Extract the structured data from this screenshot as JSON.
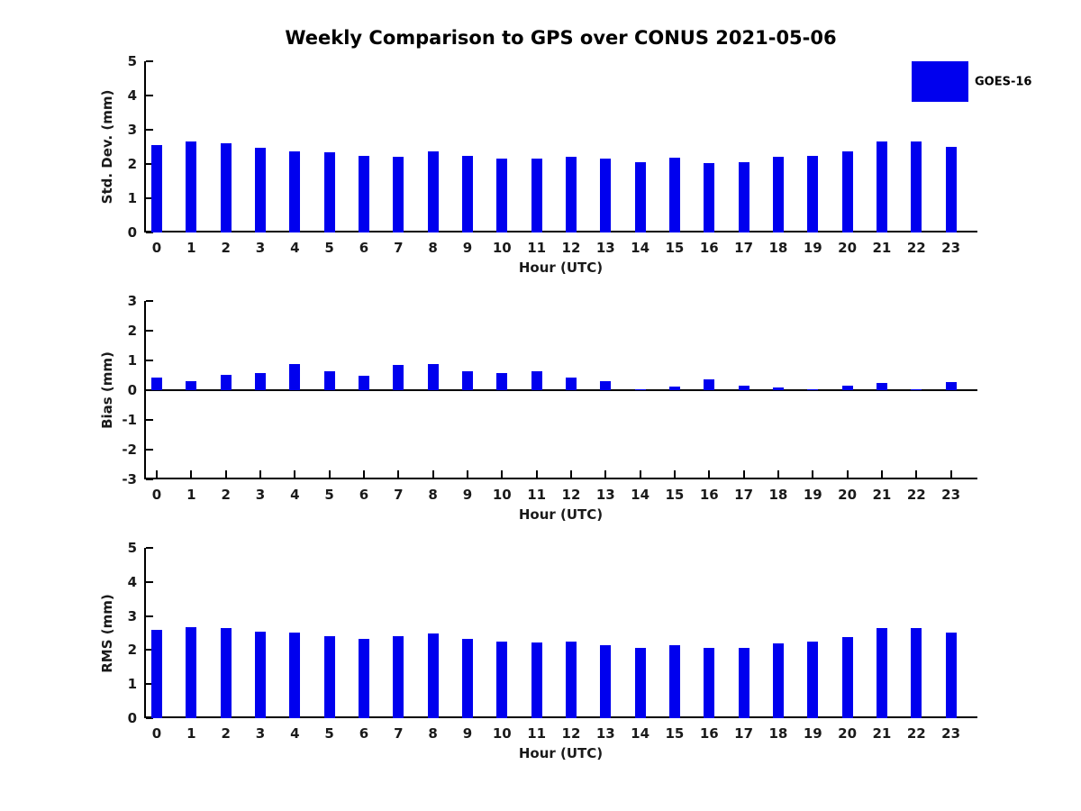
{
  "title": "Weekly Comparison to GPS over CONUS 2021-05-06",
  "legend": {
    "label": "GOES-16",
    "swatch_color": "#0000EE"
  },
  "colors": {
    "bar": "#0000EE",
    "axis": "#000000",
    "text": "#1a1a1a",
    "background": "#ffffff"
  },
  "chart_data": [
    {
      "type": "bar",
      "title": "Weekly Comparison to GPS over CONUS 2021-05-06",
      "xlabel": "Hour (UTC)",
      "ylabel": "Std. Dev. (mm)",
      "ylim": [
        0,
        5
      ],
      "yticks": [
        0,
        1,
        2,
        3,
        4,
        5
      ],
      "grid": false,
      "legend_position": "upper right outside axes",
      "categories": [
        "0",
        "1",
        "2",
        "3",
        "4",
        "5",
        "6",
        "7",
        "8",
        "9",
        "10",
        "11",
        "12",
        "13",
        "14",
        "15",
        "16",
        "17",
        "18",
        "19",
        "20",
        "21",
        "22",
        "23"
      ],
      "series": [
        {
          "name": "GOES-16",
          "values": [
            2.56,
            2.67,
            2.6,
            2.48,
            2.38,
            2.33,
            2.25,
            2.22,
            2.36,
            2.25,
            2.17,
            2.15,
            2.22,
            2.15,
            2.05,
            2.18,
            2.03,
            2.06,
            2.2,
            2.25,
            2.38,
            2.65,
            2.65,
            2.5
          ]
        }
      ]
    },
    {
      "type": "bar",
      "title": "",
      "xlabel": "Hour (UTC)",
      "ylabel": "Bias (mm)",
      "ylim": [
        -3,
        3
      ],
      "yticks": [
        -3,
        -2,
        -1,
        0,
        1,
        2,
        3
      ],
      "grid": false,
      "categories": [
        "0",
        "1",
        "2",
        "3",
        "4",
        "5",
        "6",
        "7",
        "8",
        "9",
        "10",
        "11",
        "12",
        "13",
        "14",
        "15",
        "16",
        "17",
        "18",
        "19",
        "20",
        "21",
        "22",
        "23"
      ],
      "series": [
        {
          "name": "GOES-16",
          "values": [
            0.42,
            0.3,
            0.51,
            0.58,
            0.88,
            0.63,
            0.47,
            0.85,
            0.88,
            0.63,
            0.58,
            0.63,
            0.42,
            0.3,
            0.02,
            0.12,
            0.35,
            0.14,
            0.08,
            0.04,
            0.14,
            0.25,
            0.04,
            0.26
          ]
        }
      ]
    },
    {
      "type": "bar",
      "title": "",
      "xlabel": "Hour (UTC)",
      "ylabel": "RMS (mm)",
      "ylim": [
        0,
        5
      ],
      "yticks": [
        0,
        1,
        2,
        3,
        4,
        5
      ],
      "grid": false,
      "categories": [
        "0",
        "1",
        "2",
        "3",
        "4",
        "5",
        "6",
        "7",
        "8",
        "9",
        "10",
        "11",
        "12",
        "13",
        "14",
        "15",
        "16",
        "17",
        "18",
        "19",
        "20",
        "21",
        "22",
        "23"
      ],
      "series": [
        {
          "name": "GOES-16",
          "values": [
            2.6,
            2.68,
            2.64,
            2.54,
            2.52,
            2.42,
            2.33,
            2.4,
            2.49,
            2.34,
            2.24,
            2.23,
            2.26,
            2.15,
            2.06,
            2.14,
            2.06,
            2.07,
            2.19,
            2.25,
            2.38,
            2.65,
            2.65,
            2.51
          ]
        }
      ]
    }
  ]
}
